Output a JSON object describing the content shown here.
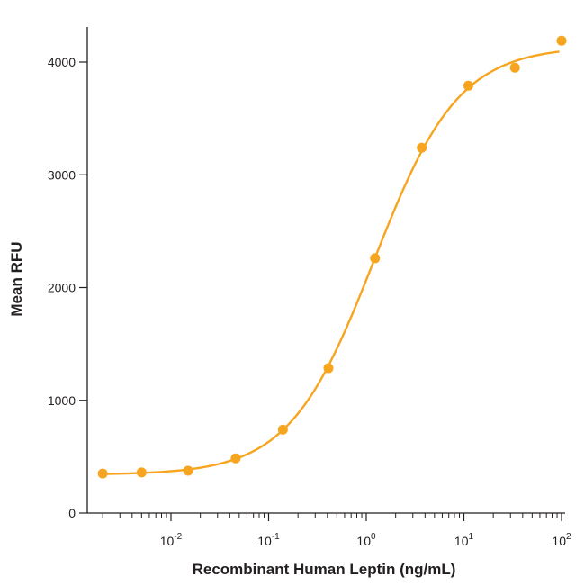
{
  "chart_data": {
    "type": "scatter",
    "title": "",
    "xlabel": "Recombinant Human Leptin (ng/mL)",
    "ylabel": "Mean RFU",
    "x_scale": "log",
    "xlim": [
      0.001,
      100
    ],
    "ylim": [
      0,
      4250
    ],
    "y_ticks": [
      0,
      1000,
      2000,
      3000,
      4000
    ],
    "x_tick_labels": [
      {
        "base": "10",
        "exp": "-2",
        "value": 0.01
      },
      {
        "base": "10",
        "exp": "-1",
        "value": 0.1
      },
      {
        "base": "10",
        "exp": "0",
        "value": 1
      },
      {
        "base": "10",
        "exp": "1",
        "value": 10
      },
      {
        "base": "10",
        "exp": "2",
        "value": 100
      }
    ],
    "grid": false,
    "legend": "none",
    "series": [
      {
        "color": "#f7a51e",
        "points": [
          {
            "x": 0.002,
            "y": 350
          },
          {
            "x": 0.005,
            "y": 360
          },
          {
            "x": 0.015,
            "y": 375
          },
          {
            "x": 0.046,
            "y": 485
          },
          {
            "x": 0.14,
            "y": 740
          },
          {
            "x": 0.41,
            "y": 1285
          },
          {
            "x": 1.23,
            "y": 2260
          },
          {
            "x": 3.7,
            "y": 3240
          },
          {
            "x": 11.1,
            "y": 3790
          },
          {
            "x": 33.3,
            "y": 3950
          },
          {
            "x": 100,
            "y": 4190
          }
        ],
        "fit": {
          "model": "4PL",
          "bottom": 340,
          "top": 4140,
          "ec50": 1.2,
          "hill": 1.0
        }
      }
    ]
  }
}
